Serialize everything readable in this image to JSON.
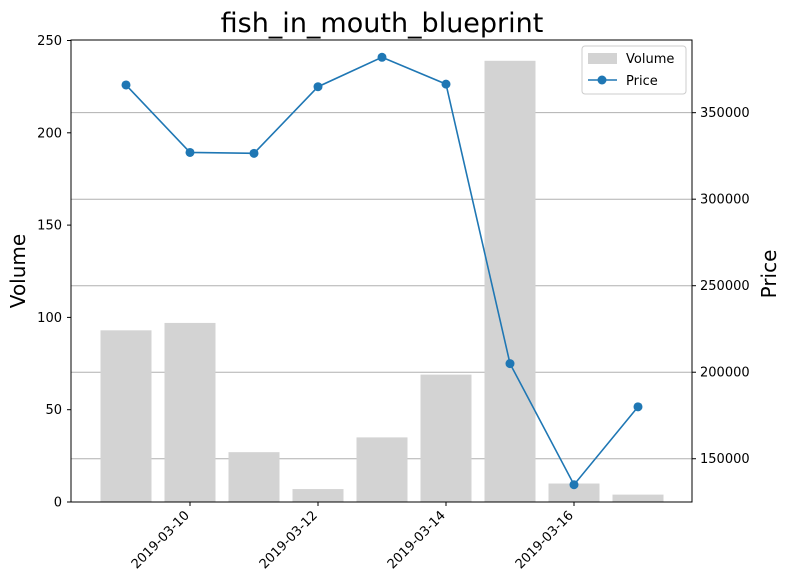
{
  "chart_data": {
    "type": "bar+line",
    "title": "fish_in_mouth_blueprint",
    "dates": [
      "2019-03-09",
      "2019-03-10",
      "2019-03-11",
      "2019-03-12",
      "2019-03-13",
      "2019-03-14",
      "2019-03-15",
      "2019-03-16",
      "2019-03-17"
    ],
    "x_tick_labels": [
      "2019-03-10",
      "2019-03-12",
      "2019-03-14",
      "2019-03-16"
    ],
    "x_tick_indices": [
      1,
      3,
      5,
      7
    ],
    "series": [
      {
        "name": "Volume",
        "axis": "left",
        "kind": "bar",
        "color": "#d3d3d3",
        "values": [
          93,
          97,
          27,
          7,
          35,
          69,
          239,
          10,
          4
        ]
      },
      {
        "name": "Price",
        "axis": "right",
        "kind": "line",
        "color": "#1f77b4",
        "values": [
          366000,
          327000,
          326500,
          365000,
          382000,
          366500,
          205000,
          135000,
          180000
        ]
      }
    ],
    "y_left": {
      "label": "Volume",
      "lim": [
        0,
        250
      ],
      "ticks": [
        0,
        50,
        100,
        150,
        200,
        250
      ]
    },
    "y_right": {
      "label": "Price",
      "lim": [
        125000,
        392000
      ],
      "ticks": [
        150000,
        200000,
        250000,
        300000,
        350000
      ]
    },
    "grid": "right-axis horizontal",
    "legend": {
      "position": "top-right",
      "entries": [
        "Volume",
        "Price"
      ]
    }
  }
}
